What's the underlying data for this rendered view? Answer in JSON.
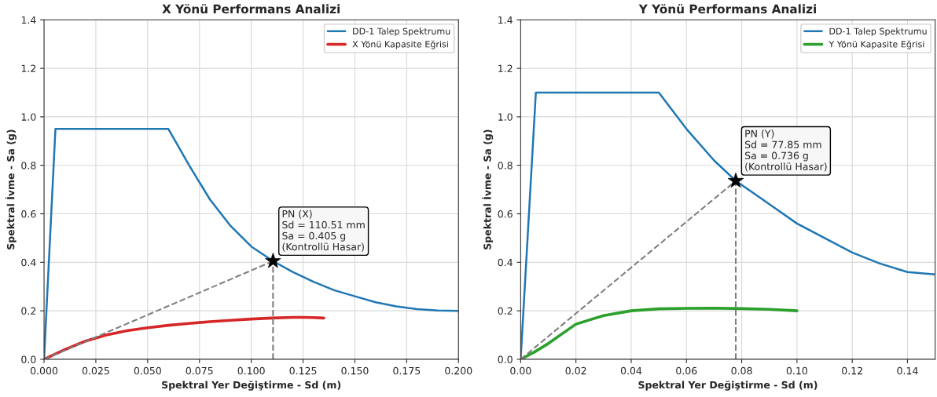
{
  "chart_data": [
    {
      "type": "line",
      "title": "X Yönü Performans Analizi",
      "xlabel": "Spektral Yer Değiştirme - Sd (m)",
      "ylabel": "Spektral İvme - Sa (g)",
      "xlim": [
        0,
        0.2
      ],
      "ylim": [
        0,
        1.4
      ],
      "xticks": [
        {
          "value": 0,
          "label": "0.000"
        },
        {
          "value": 0.025,
          "label": "0.025"
        },
        {
          "value": 0.05,
          "label": "0.050"
        },
        {
          "value": 0.075,
          "label": "0.075"
        },
        {
          "value": 0.1,
          "label": "0.100"
        },
        {
          "value": 0.125,
          "label": "0.125"
        },
        {
          "value": 0.15,
          "label": "0.150"
        },
        {
          "value": 0.175,
          "label": "0.175"
        },
        {
          "value": 0.2,
          "label": "0.200"
        }
      ],
      "yticks": [
        {
          "value": 0,
          "label": "0.0"
        },
        {
          "value": 0.2,
          "label": "0.2"
        },
        {
          "value": 0.4,
          "label": "0.4"
        },
        {
          "value": 0.6,
          "label": "0.6"
        },
        {
          "value": 0.8,
          "label": "0.8"
        },
        {
          "value": 1.0,
          "label": "1.0"
        },
        {
          "value": 1.2,
          "label": "1.2"
        },
        {
          "value": 1.4,
          "label": "1.4"
        }
      ],
      "grid": true,
      "legend": "top right",
      "series": [
        {
          "name": "DD-1 Talep Spektrumu",
          "color": "#1f77b4",
          "x": [
            0,
            0.0055,
            0.06,
            0.07,
            0.08,
            0.09,
            0.1,
            0.11051,
            0.12,
            0.13,
            0.14,
            0.15,
            0.16,
            0.17,
            0.18,
            0.19,
            0.2
          ],
          "values": [
            0,
            0.95,
            0.95,
            0.8,
            0.66,
            0.55,
            0.465,
            0.405,
            0.36,
            0.32,
            0.285,
            0.26,
            0.235,
            0.218,
            0.207,
            0.201,
            0.2
          ]
        },
        {
          "name": "X Yönü Kapasite Eğrisi",
          "color": "#d62728",
          "x": [
            0,
            0.01,
            0.02,
            0.03,
            0.04,
            0.05,
            0.06,
            0.07,
            0.08,
            0.09,
            0.1,
            0.11,
            0.12,
            0.125,
            0.13,
            0.135
          ],
          "values": [
            0,
            0.04,
            0.075,
            0.1,
            0.118,
            0.13,
            0.14,
            0.148,
            0.155,
            0.161,
            0.166,
            0.17,
            0.173,
            0.173,
            0.172,
            0.17
          ]
        },
        {
          "color": "#808080",
          "line_style": "dashed",
          "x": [
            0,
            0.11051
          ],
          "values": [
            0,
            0.405
          ]
        },
        {
          "color": "#808080",
          "line_style": "dashed",
          "x": [
            0.11051,
            0.11051
          ],
          "values": [
            0,
            0.405
          ]
        },
        {
          "type": "scatter",
          "color": "#000000",
          "marker": "star",
          "x": [
            0.11051
          ],
          "values": [
            0.405
          ]
        }
      ],
      "annotations": [
        {
          "text": "PN (X)\nSd = 110.51 mm\nSa = 0.405 g\n(Kontrollü Hasar)",
          "x": 0.11051,
          "y": 0.405
        }
      ]
    },
    {
      "type": "line",
      "title": "Y Yönü Performans Analizi",
      "xlabel": "Spektral Yer Değiştirme - Sd (m)",
      "ylabel": "Spektral İvme - Sa (g)",
      "xlim": [
        0,
        0.15
      ],
      "ylim": [
        0,
        1.4
      ],
      "xticks": [
        {
          "value": 0,
          "label": "0.00"
        },
        {
          "value": 0.02,
          "label": "0.02"
        },
        {
          "value": 0.04,
          "label": "0.04"
        },
        {
          "value": 0.06,
          "label": "0.06"
        },
        {
          "value": 0.08,
          "label": "0.08"
        },
        {
          "value": 0.1,
          "label": "0.10"
        },
        {
          "value": 0.12,
          "label": "0.12"
        },
        {
          "value": 0.14,
          "label": "0.14"
        }
      ],
      "yticks": [
        {
          "value": 0,
          "label": "0.0"
        },
        {
          "value": 0.2,
          "label": "0.2"
        },
        {
          "value": 0.4,
          "label": "0.4"
        },
        {
          "value": 0.6,
          "label": "0.6"
        },
        {
          "value": 0.8,
          "label": "0.8"
        },
        {
          "value": 1.0,
          "label": "1.0"
        },
        {
          "value": 1.2,
          "label": "1.2"
        },
        {
          "value": 1.4,
          "label": "1.4"
        }
      ],
      "grid": true,
      "legend": "top right",
      "series": [
        {
          "name": "DD-1 Talep Spektrumu",
          "color": "#1f77b4",
          "x": [
            0,
            0.0055,
            0.05,
            0.06,
            0.07,
            0.07785,
            0.09,
            0.1,
            0.11,
            0.12,
            0.13,
            0.14,
            0.15
          ],
          "values": [
            0,
            1.1,
            1.1,
            0.95,
            0.82,
            0.736,
            0.64,
            0.56,
            0.5,
            0.44,
            0.395,
            0.36,
            0.35
          ]
        },
        {
          "name": "Y Yönü Kapasite Eğrisi",
          "color": "#2ca02c",
          "x": [
            0,
            0.005,
            0.01,
            0.02,
            0.03,
            0.04,
            0.05,
            0.06,
            0.07,
            0.08,
            0.09,
            0.1
          ],
          "values": [
            0,
            0.03,
            0.065,
            0.145,
            0.18,
            0.2,
            0.208,
            0.21,
            0.211,
            0.209,
            0.206,
            0.2
          ]
        },
        {
          "color": "#808080",
          "line_style": "dashed",
          "x": [
            0,
            0.07785
          ],
          "values": [
            0,
            0.736
          ]
        },
        {
          "color": "#808080",
          "line_style": "dashed",
          "x": [
            0.07785,
            0.07785
          ],
          "values": [
            0,
            0.736
          ]
        },
        {
          "type": "scatter",
          "color": "#000000",
          "marker": "star",
          "x": [
            0.07785
          ],
          "values": [
            0.736
          ]
        }
      ],
      "annotations": [
        {
          "text": "PN (Y)\nSd = 77.85 mm\nSa = 0.736 g\n(Kontrollü Hasar)",
          "x": 0.07785,
          "y": 0.736
        }
      ]
    }
  ]
}
